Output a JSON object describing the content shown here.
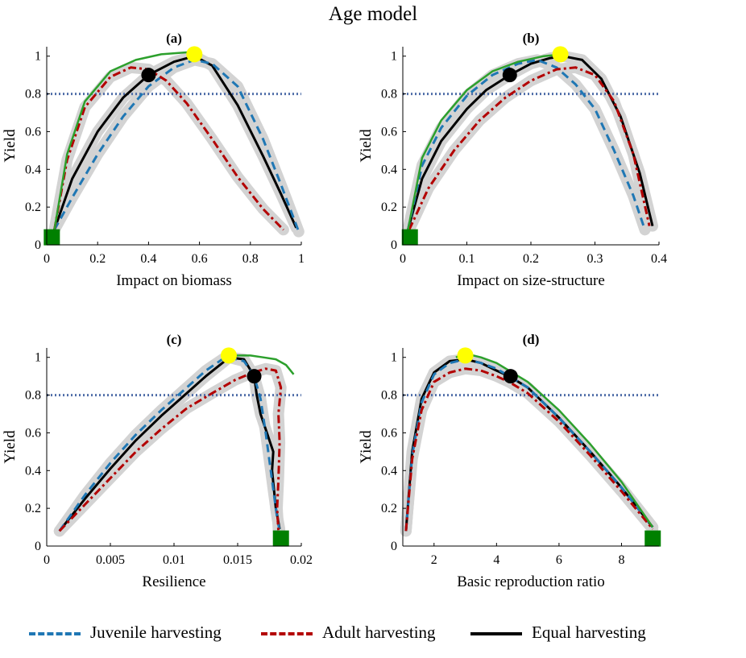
{
  "figure_title": "Age model",
  "legend": {
    "juvenile": "Juvenile harvesting",
    "adult": "Adult harvesting",
    "equal": "Equal harvesting"
  },
  "colors": {
    "juvenile": "#1f77b4",
    "adult": "#b30000",
    "equal": "#000000",
    "envelope": "#2ca02c",
    "band": "#d3d3d3",
    "threshold": "#4f6da8",
    "yellow_marker": "#ffff00",
    "green_marker": "#008000",
    "black_marker": "#000000"
  },
  "chart_data": [
    {
      "type": "line",
      "panel": "(a)",
      "xlabel": "Impact on biomass",
      "ylabel": "Yield",
      "xlim": [
        0,
        1
      ],
      "ylim": [
        0,
        1.05
      ],
      "xticks": [
        0,
        0.2,
        0.4,
        0.6,
        0.8,
        1
      ],
      "xtick_labels": [
        "0",
        "0.2",
        "0.4",
        "0.6",
        "0.8",
        "1"
      ],
      "yticks": [
        0,
        0.2,
        0.4,
        0.6,
        0.8,
        1
      ],
      "ytick_labels": [
        "0",
        "0.2",
        "0.4",
        "0.6",
        "0.8",
        "1"
      ],
      "threshold": 0.8,
      "series": [
        {
          "name": "Equal harvesting",
          "x": [
            0.03,
            0.1,
            0.2,
            0.3,
            0.4,
            0.5,
            0.58,
            0.65,
            0.75,
            0.85,
            0.92,
            0.98
          ],
          "y": [
            0.08,
            0.35,
            0.6,
            0.78,
            0.9,
            0.97,
            1.0,
            0.95,
            0.74,
            0.47,
            0.27,
            0.09
          ]
        },
        {
          "name": "Juvenile harvesting",
          "x": [
            0.03,
            0.1,
            0.2,
            0.3,
            0.4,
            0.5,
            0.58,
            0.65,
            0.75,
            0.85,
            0.92,
            0.99
          ],
          "y": [
            0.08,
            0.25,
            0.48,
            0.68,
            0.84,
            0.94,
            0.98,
            0.96,
            0.84,
            0.56,
            0.32,
            0.07
          ]
        },
        {
          "name": "Adult harvesting",
          "x": [
            0.03,
            0.08,
            0.15,
            0.25,
            0.33,
            0.4,
            0.47,
            0.55,
            0.65,
            0.75,
            0.85,
            0.93
          ],
          "y": [
            0.08,
            0.45,
            0.73,
            0.89,
            0.94,
            0.93,
            0.87,
            0.75,
            0.56,
            0.36,
            0.19,
            0.08
          ]
        },
        {
          "name": "Envelope",
          "x": [
            0.03,
            0.08,
            0.15,
            0.25,
            0.35,
            0.45,
            0.55,
            0.58
          ],
          "y": [
            0.08,
            0.48,
            0.76,
            0.92,
            0.98,
            1.01,
            1.02,
            1.02
          ]
        }
      ],
      "markers": [
        {
          "kind": "max-yield",
          "x": 0.58,
          "y": 1.01
        },
        {
          "kind": "equal-marker",
          "x": 0.4,
          "y": 0.9
        },
        {
          "kind": "origin",
          "x": 0.02,
          "y": 0.04
        }
      ]
    },
    {
      "type": "line",
      "panel": "(b)",
      "xlabel": "Impact on size-structure",
      "ylabel": "Yield",
      "xlim": [
        0,
        0.4
      ],
      "ylim": [
        0,
        1.05
      ],
      "xticks": [
        0,
        0.1,
        0.2,
        0.3,
        0.4
      ],
      "xtick_labels": [
        "0",
        "0.1",
        "0.2",
        "0.3",
        "0.4"
      ],
      "yticks": [
        0,
        0.2,
        0.4,
        0.6,
        0.8,
        1
      ],
      "ytick_labels": [
        "0",
        "0.2",
        "0.4",
        "0.6",
        "0.8",
        "1"
      ],
      "threshold": 0.8,
      "series": [
        {
          "name": "Equal harvesting",
          "x": [
            0.008,
            0.03,
            0.06,
            0.1,
            0.13,
            0.167,
            0.2,
            0.23,
            0.25,
            0.28,
            0.31,
            0.34,
            0.37,
            0.39
          ],
          "y": [
            0.08,
            0.35,
            0.55,
            0.72,
            0.82,
            0.9,
            0.96,
            0.99,
            1.0,
            0.98,
            0.88,
            0.68,
            0.38,
            0.1
          ]
        },
        {
          "name": "Juvenile harvesting",
          "x": [
            0.008,
            0.03,
            0.06,
            0.1,
            0.14,
            0.18,
            0.21,
            0.24,
            0.27,
            0.3,
            0.33,
            0.36,
            0.378
          ],
          "y": [
            0.08,
            0.42,
            0.62,
            0.79,
            0.9,
            0.96,
            0.98,
            0.94,
            0.85,
            0.72,
            0.5,
            0.26,
            0.08
          ]
        },
        {
          "name": "Adult harvesting",
          "x": [
            0.01,
            0.04,
            0.08,
            0.12,
            0.16,
            0.2,
            0.24,
            0.27,
            0.3,
            0.33,
            0.36,
            0.385
          ],
          "y": [
            0.08,
            0.3,
            0.5,
            0.66,
            0.78,
            0.87,
            0.93,
            0.94,
            0.9,
            0.76,
            0.48,
            0.1
          ]
        },
        {
          "name": "Envelope",
          "x": [
            0.008,
            0.03,
            0.06,
            0.1,
            0.14,
            0.18,
            0.22,
            0.25
          ],
          "y": [
            0.08,
            0.46,
            0.66,
            0.82,
            0.92,
            0.97,
            1.0,
            1.01
          ]
        }
      ],
      "markers": [
        {
          "kind": "max-yield",
          "x": 0.246,
          "y": 1.01
        },
        {
          "kind": "equal-marker",
          "x": 0.167,
          "y": 0.9
        },
        {
          "kind": "origin",
          "x": 0.011,
          "y": 0.04
        }
      ]
    },
    {
      "type": "line",
      "panel": "(c)",
      "xlabel": "Resilience",
      "ylabel": "Yield",
      "xlim": [
        0,
        0.02
      ],
      "ylim": [
        0,
        1.05
      ],
      "xticks": [
        0,
        0.005,
        0.01,
        0.015,
        0.02
      ],
      "xtick_labels": [
        "0",
        "0.005",
        "0.01",
        "0.015",
        "0.02"
      ],
      "yticks": [
        0,
        0.2,
        0.4,
        0.6,
        0.8,
        1
      ],
      "ytick_labels": [
        "0",
        "0.2",
        "0.4",
        "0.6",
        "0.8",
        "1"
      ],
      "threshold": 0.8,
      "series": [
        {
          "name": "Equal harvesting",
          "x": [
            0.001,
            0.003,
            0.005,
            0.007,
            0.009,
            0.011,
            0.0125,
            0.0138,
            0.0143,
            0.0155,
            0.0163,
            0.0165,
            0.0168,
            0.0173,
            0.0178,
            0.0177,
            0.018,
            0.0183
          ],
          "y": [
            0.08,
            0.25,
            0.41,
            0.56,
            0.69,
            0.81,
            0.9,
            0.97,
            1.0,
            0.99,
            0.9,
            0.8,
            0.7,
            0.6,
            0.5,
            0.4,
            0.2,
            0.09
          ]
        },
        {
          "name": "Juvenile harvesting",
          "x": [
            0.001,
            0.003,
            0.005,
            0.007,
            0.009,
            0.011,
            0.0125,
            0.0138,
            0.0143,
            0.0155,
            0.0163,
            0.0168,
            0.0172,
            0.0176,
            0.0178,
            0.0181,
            0.0183
          ],
          "y": [
            0.08,
            0.27,
            0.44,
            0.59,
            0.72,
            0.84,
            0.93,
            0.99,
            1.0,
            0.98,
            0.9,
            0.78,
            0.6,
            0.4,
            0.3,
            0.15,
            0.08
          ]
        },
        {
          "name": "Adult harvesting",
          "x": [
            0.001,
            0.003,
            0.005,
            0.007,
            0.009,
            0.011,
            0.013,
            0.0148,
            0.0162,
            0.0172,
            0.018,
            0.0184,
            0.0182,
            0.0183,
            0.0182,
            0.0181,
            0.0182
          ],
          "y": [
            0.08,
            0.22,
            0.36,
            0.5,
            0.62,
            0.73,
            0.81,
            0.88,
            0.92,
            0.94,
            0.93,
            0.84,
            0.7,
            0.55,
            0.35,
            0.2,
            0.08
          ]
        },
        {
          "name": "Envelope",
          "x": [
            0.0143,
            0.016,
            0.017,
            0.018,
            0.0188,
            0.0194
          ],
          "y": [
            1.01,
            1.01,
            1.0,
            0.99,
            0.96,
            0.91
          ]
        }
      ],
      "markers": [
        {
          "kind": "max-yield",
          "x": 0.0143,
          "y": 1.01
        },
        {
          "kind": "equal-marker",
          "x": 0.0163,
          "y": 0.9
        },
        {
          "kind": "origin",
          "x": 0.0184,
          "y": 0.04
        }
      ]
    },
    {
      "type": "line",
      "panel": "(d)",
      "xlabel": "Basic reproduction ratio",
      "ylabel": "Yield",
      "xlim": [
        1,
        9.2
      ],
      "ylim": [
        0,
        1.05
      ],
      "xticks": [
        2,
        4,
        6,
        8
      ],
      "xtick_labels": [
        "2",
        "4",
        "6",
        "8"
      ],
      "yticks": [
        0,
        0.2,
        0.4,
        0.6,
        0.8,
        1
      ],
      "ytick_labels": [
        "0",
        "0.2",
        "0.4",
        "0.6",
        "0.8",
        "1"
      ],
      "threshold": 0.8,
      "series": [
        {
          "name": "Equal harvesting",
          "x": [
            1.1,
            1.3,
            1.6,
            2.0,
            2.5,
            3.0,
            3.5,
            4.0,
            4.4,
            5.0,
            6.0,
            7.0,
            8.0,
            9.0
          ],
          "y": [
            0.08,
            0.5,
            0.78,
            0.92,
            0.98,
            0.99,
            0.97,
            0.93,
            0.9,
            0.84,
            0.68,
            0.5,
            0.31,
            0.1
          ]
        },
        {
          "name": "Juvenile harvesting",
          "x": [
            1.1,
            1.3,
            1.6,
            2.0,
            2.5,
            3.0,
            3.5,
            4.0,
            4.4,
            5.0,
            6.0,
            7.0,
            8.0,
            9.0
          ],
          "y": [
            0.08,
            0.48,
            0.76,
            0.91,
            0.97,
            0.99,
            0.97,
            0.94,
            0.9,
            0.84,
            0.68,
            0.5,
            0.31,
            0.1
          ]
        },
        {
          "name": "Adult harvesting",
          "x": [
            1.1,
            1.3,
            1.6,
            2.0,
            2.5,
            3.0,
            3.5,
            4.0,
            4.4,
            5.0,
            6.0,
            7.0,
            8.0,
            9.0
          ],
          "y": [
            0.08,
            0.46,
            0.72,
            0.87,
            0.92,
            0.94,
            0.93,
            0.9,
            0.87,
            0.81,
            0.66,
            0.48,
            0.29,
            0.09
          ]
        },
        {
          "name": "Envelope",
          "x": [
            2.7,
            3.0,
            3.5,
            4.0,
            5.0,
            6.0,
            7.0,
            8.0,
            9.0
          ],
          "y": [
            1.0,
            1.02,
            1.0,
            0.97,
            0.87,
            0.72,
            0.54,
            0.34,
            0.1
          ]
        }
      ],
      "markers": [
        {
          "kind": "max-yield",
          "x": 3.0,
          "y": 1.01
        },
        {
          "kind": "equal-marker",
          "x": 4.45,
          "y": 0.9
        },
        {
          "kind": "origin",
          "x": 9.0,
          "y": 0.04
        }
      ]
    }
  ]
}
